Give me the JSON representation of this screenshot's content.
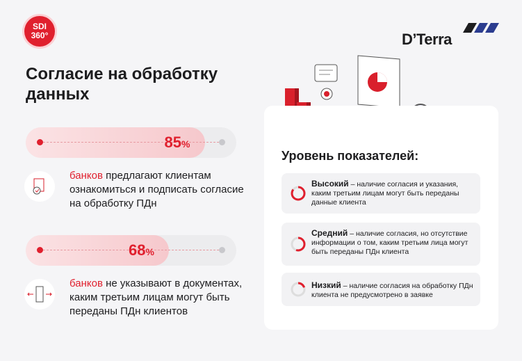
{
  "logo": {
    "line1": "SDI",
    "line2": "360°"
  },
  "brand": "D’Terra",
  "title": "Согласие на обработку данных",
  "stats": [
    {
      "value": 85,
      "unit": "%",
      "highlight": "банков",
      "text": " предлагают клиентам ознакомиться и подписать согласие на обработку ПДн"
    },
    {
      "value": 68,
      "unit": "%",
      "highlight": "банков",
      "text": " не указывают в документах, каким третьим лицам могут быть переданы ПДн клиентов"
    }
  ],
  "panel": {
    "title": "Уровень показателей:",
    "levels": [
      {
        "name": "Высокий",
        "text": " – наличие согласия и указания, каким третьим лицам могут быть переданы данные клиента"
      },
      {
        "name": "Средний",
        "text": " –  наличие согласия, но отсутствие информации о том, каким третьим лица могут быть переданы ПДн клиента"
      },
      {
        "name": "Низкий",
        "text": " – наличие согласия на обработку ПДн клиента не предусмотрено в заявке"
      }
    ]
  }
}
